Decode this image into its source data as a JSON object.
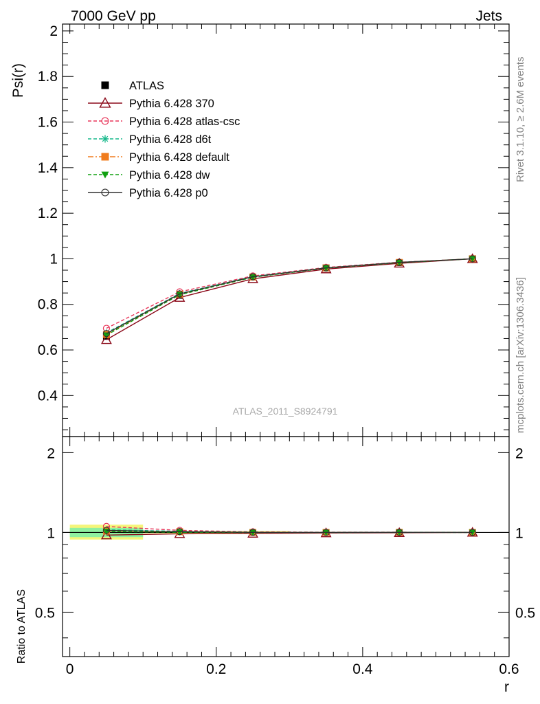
{
  "header": {
    "left_title": "7000 GeV pp",
    "right_title": "Jets"
  },
  "side_labels": {
    "rivet": "Rivet 3.1.10, ≥ 2.6M events",
    "mcplots": "mcplots.cern.ch [arXiv:1306.3436]"
  },
  "watermark": "ATLAS_2011_S8924791",
  "chart_data": [
    {
      "type": "line",
      "panel": "main",
      "ylabel": "Psi(r)",
      "xlabel": "r",
      "xlim": [
        -0.01,
        0.6
      ],
      "ylim": [
        0.22,
        2.03
      ],
      "x": [
        0.05,
        0.15,
        0.25,
        0.35,
        0.45,
        0.55
      ],
      "xticks": [
        0,
        0.2,
        0.4,
        0.6
      ],
      "xtick_labels": [
        "0",
        "0.2",
        "0.4",
        "0.6"
      ],
      "yticks": [
        0.4,
        0.6,
        0.8,
        1,
        1.2,
        1.4,
        1.6,
        1.8,
        2
      ],
      "ytick_labels": [
        "0.4",
        "0.6",
        "0.8",
        "1",
        "1.2",
        "1.4",
        "1.6",
        "1.8",
        "2"
      ],
      "legend_position": "top-left",
      "series": [
        {
          "name": "ATLAS",
          "color": "#000000",
          "marker": "square",
          "style": "none",
          "values": [
            0.66,
            0.84,
            0.92,
            0.96,
            0.983,
            1.0
          ]
        },
        {
          "name": "Pythia 6.428 370",
          "color": "#8b0a1a",
          "marker": "triangle-open",
          "style": "solid",
          "values": [
            0.645,
            0.83,
            0.912,
            0.955,
            0.98,
            1.0
          ]
        },
        {
          "name": "Pythia 6.428 atlas-csc",
          "color": "#e8365a",
          "marker": "circle-open",
          "style": "dashed",
          "values": [
            0.695,
            0.855,
            0.925,
            0.962,
            0.985,
            1.0
          ]
        },
        {
          "name": "Pythia 6.428 d6t",
          "color": "#14b88a",
          "marker": "star",
          "style": "dashed",
          "values": [
            0.675,
            0.848,
            0.922,
            0.96,
            0.984,
            1.0
          ]
        },
        {
          "name": "Pythia 6.428 default",
          "color": "#f07c1e",
          "marker": "square",
          "style": "dashdot",
          "values": [
            0.668,
            0.845,
            0.92,
            0.96,
            0.984,
            1.0
          ]
        },
        {
          "name": "Pythia 6.428 dw",
          "color": "#10a010",
          "marker": "triangle-down",
          "style": "dashed",
          "values": [
            0.665,
            0.842,
            0.919,
            0.959,
            0.983,
            1.0
          ]
        },
        {
          "name": "Pythia 6.428 p0",
          "color": "#303030",
          "marker": "circle-open",
          "style": "solid",
          "values": [
            0.672,
            0.846,
            0.921,
            0.96,
            0.984,
            1.0
          ]
        }
      ]
    },
    {
      "type": "line",
      "panel": "ratio",
      "ylabel": "Ratio to ATLAS",
      "xlabel": "r",
      "xlim": [
        -0.01,
        0.6
      ],
      "ylim": [
        0.34,
        2.3
      ],
      "yticks": [
        0.5,
        1,
        2
      ],
      "ytick_labels": [
        "0.5",
        "1",
        "2"
      ],
      "y_scale": "log",
      "x": [
        0.05,
        0.15,
        0.25,
        0.35,
        0.45,
        0.55
      ],
      "uncertainty_band": {
        "x_range": [
          0.0,
          0.1
        ],
        "outer": [
          0.94,
          1.07
        ],
        "inner": [
          0.96,
          1.04
        ],
        "outer_color": "#f5f57a",
        "inner_color": "#8ff0a0"
      },
      "series": [
        {
          "name": "Pythia 6.428 370",
          "color": "#8b0a1a",
          "marker": "triangle-open",
          "style": "solid",
          "values": [
            0.977,
            0.988,
            0.991,
            0.995,
            0.997,
            1.0
          ]
        },
        {
          "name": "Pythia 6.428 atlas-csc",
          "color": "#e8365a",
          "marker": "circle-open",
          "style": "dashed",
          "values": [
            1.053,
            1.018,
            1.005,
            1.002,
            1.002,
            1.0
          ]
        },
        {
          "name": "Pythia 6.428 d6t",
          "color": "#14b88a",
          "marker": "star",
          "style": "dashed",
          "values": [
            1.023,
            1.01,
            1.002,
            1.0,
            1.001,
            1.0
          ]
        },
        {
          "name": "Pythia 6.428 default",
          "color": "#f07c1e",
          "marker": "square",
          "style": "dashdot",
          "values": [
            1.012,
            1.006,
            1.0,
            1.0,
            1.001,
            1.0
          ]
        },
        {
          "name": "Pythia 6.428 dw",
          "color": "#10a010",
          "marker": "triangle-down",
          "style": "dashed",
          "values": [
            1.008,
            1.002,
            0.999,
            0.999,
            1.0,
            1.0
          ]
        },
        {
          "name": "Pythia 6.428 p0",
          "color": "#303030",
          "marker": "circle-open",
          "style": "solid",
          "values": [
            1.018,
            1.007,
            1.001,
            1.0,
            1.001,
            1.0
          ]
        }
      ]
    }
  ]
}
